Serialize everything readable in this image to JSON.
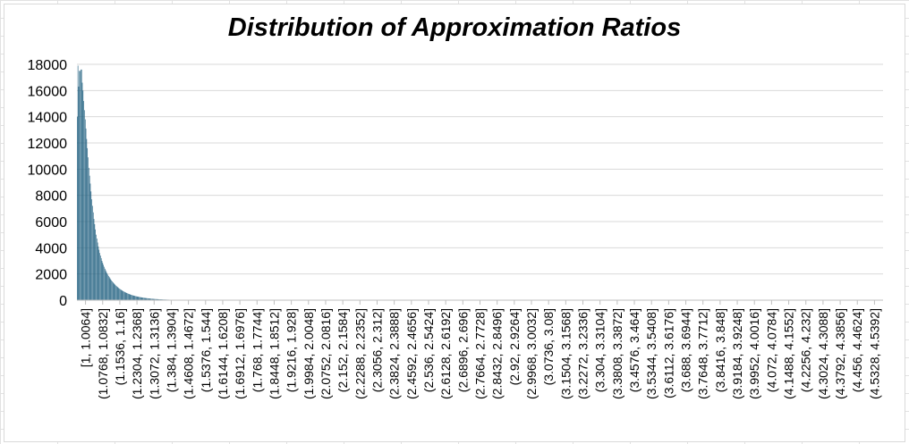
{
  "chart_data": {
    "type": "bar",
    "title": "Distribution of Approximation Ratios",
    "xlabel": "",
    "ylabel": "",
    "ylim": [
      0,
      18000
    ],
    "yticks": [
      0,
      2000,
      4000,
      6000,
      8000,
      10000,
      12000,
      14000,
      16000,
      18000
    ],
    "grid": true,
    "bar_color": "#1f5f7f",
    "bin_start": 1.0,
    "bin_width": 0.0032,
    "bin_count": 1105,
    "category_labels": [
      "[1, 1.0064]",
      "(1.0768, 1.0832]",
      "(1.1536, 1.16]",
      "(1.2304, 1.2368]",
      "(1.3072, 1.3136]",
      "(1.384, 1.3904]",
      "(1.4608, 1.4672]",
      "(1.5376, 1.544]",
      "(1.6144, 1.6208]",
      "(1.6912, 1.6976]",
      "(1.768, 1.7744]",
      "(1.8448, 1.8512]",
      "(1.9216, 1.928]",
      "(1.9984, 2.0048]",
      "(2.0752, 2.0816]",
      "(2.152, 2.1584]",
      "(2.2288, 2.2352]",
      "(2.3056, 2.312]",
      "(2.3824, 2.3888]",
      "(2.4592, 2.4656]",
      "(2.536, 2.5424]",
      "(2.6128, 2.6192]",
      "(2.6896, 2.696]",
      "(2.7664, 2.7728]",
      "(2.8432, 2.8496]",
      "(2.92, 2.9264]",
      "(2.9968, 3.0032]",
      "(3.0736, 3.08]",
      "(3.1504, 3.1568]",
      "(3.2272, 3.2336]",
      "(3.304, 3.3104]",
      "(3.3808, 3.3872]",
      "(3.4576, 3.464]",
      "(3.5344, 3.5408]",
      "(3.6112, 3.6176]",
      "(3.688, 3.6944]",
      "(3.7648, 3.7712]",
      "(3.8416, 3.848]",
      "(3.9184, 3.9248]",
      "(3.9952, 4.0016]",
      "(4.072, 4.0784]",
      "(4.1488, 4.1552]",
      "(4.2256, 4.232]",
      "(4.3024, 4.3088]",
      "(4.3792, 4.3856]",
      "(4.456, 4.4624]",
      "(4.5328, 4.5392]"
    ],
    "values": [
      14000,
      17900,
      16300,
      17500,
      17500,
      17600,
      17600,
      16600,
      16000,
      15200,
      14500,
      13800,
      13100,
      12300,
      11600,
      10900,
      10100,
      9500,
      8900,
      8300,
      7700,
      7200,
      6700,
      6200,
      5800,
      5400,
      5000,
      4700,
      4400,
      4100,
      3850,
      3600,
      3400,
      3200,
      3000,
      2850,
      2700,
      2550,
      2400,
      2280,
      2160,
      2050,
      1950,
      1850,
      1760,
      1670,
      1590,
      1510,
      1440,
      1370,
      1300,
      1240,
      1180,
      1120,
      1070,
      1020,
      970,
      920,
      880,
      840,
      800,
      760,
      725,
      690,
      660,
      630,
      600,
      570,
      545,
      520,
      495,
      470,
      450,
      430,
      410,
      390,
      370,
      355,
      340,
      325,
      310,
      295,
      282,
      270,
      258,
      246,
      235,
      224,
      214,
      204,
      195,
      186,
      178,
      170,
      162,
      155,
      148,
      141,
      135,
      129,
      123,
      117,
      112,
      107,
      102,
      97,
      93,
      89,
      85,
      81,
      77,
      74,
      70,
      67,
      64,
      61,
      58,
      55,
      53,
      50,
      48,
      46,
      44,
      42,
      40,
      38,
      36,
      34,
      33,
      31,
      30,
      28,
      27,
      26,
      24,
      23,
      22,
      21,
      20,
      19,
      18,
      17,
      16,
      15,
      14,
      13,
      12,
      11,
      10,
      9,
      8,
      7,
      6,
      5,
      5,
      4,
      4,
      3,
      3,
      2,
      2,
      1,
      1
    ]
  }
}
